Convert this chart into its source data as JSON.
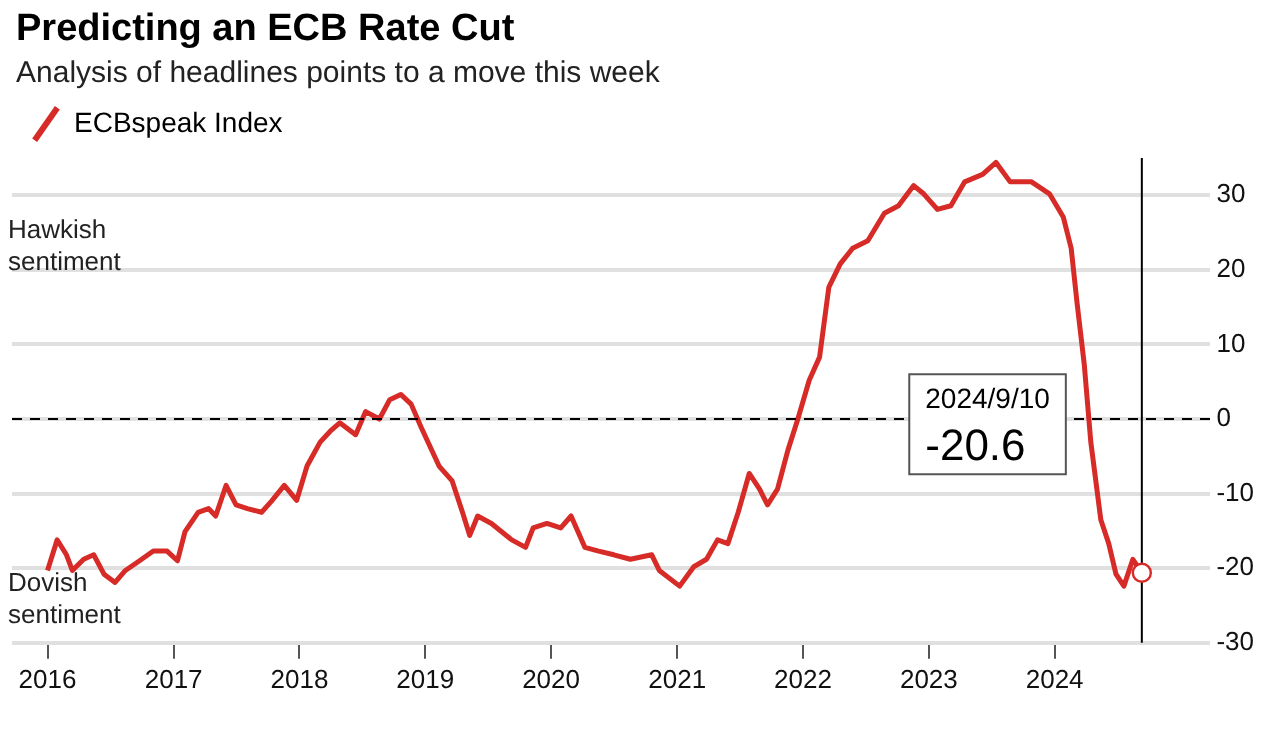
{
  "chart_data": {
    "type": "line",
    "title": "Predicting an ECB Rate Cut",
    "subtitle": "Analysis of headlines points to a move this week",
    "x": [
      "2016-01-01",
      "2016-01-29",
      "2016-02-25",
      "2016-03-13",
      "2016-04-15",
      "2016-05-14",
      "2016-06-13",
      "2016-07-15",
      "2016-08-14",
      "2016-09-24",
      "2016-11-03",
      "2016-12-13",
      "2017-01-12",
      "2017-02-03",
      "2017-03-13",
      "2017-04-12",
      "2017-05-03",
      "2017-06-02",
      "2017-07-01",
      "2017-08-03",
      "2017-09-13",
      "2017-10-12",
      "2017-11-18",
      "2017-12-24",
      "2018-01-23",
      "2018-03-02",
      "2018-04-01",
      "2018-04-28",
      "2018-06-13",
      "2018-07-12",
      "2018-08-21",
      "2018-09-20",
      "2018-10-22",
      "2018-11-21",
      "2018-12-20",
      "2019-02-10",
      "2019-03-20",
      "2019-04-19",
      "2019-05-10",
      "2019-06-02",
      "2019-07-12",
      "2019-09-09",
      "2019-10-19",
      "2019-11-10",
      "2019-12-20",
      "2020-01-29",
      "2020-02-28",
      "2020-04-08",
      "2020-05-18",
      "2020-07-01",
      "2020-08-18",
      "2020-10-19",
      "2020-11-10",
      "2021-01-08",
      "2021-02-18",
      "2021-03-27",
      "2021-04-28",
      "2021-05-28",
      "2021-06-27",
      "2021-07-29",
      "2021-08-28",
      "2021-09-20",
      "2021-10-19",
      "2021-11-18",
      "2021-12-17",
      "2022-01-19",
      "2022-02-18",
      "2022-03-17",
      "2022-04-19",
      "2022-05-25",
      "2022-07-08",
      "2022-08-25",
      "2022-10-05",
      "2022-11-18",
      "2022-12-17",
      "2023-01-26",
      "2023-03-06",
      "2023-04-15",
      "2023-06-06",
      "2023-07-15",
      "2023-08-25",
      "2023-10-26",
      "2023-12-17",
      "2024-01-26",
      "2024-02-18",
      "2024-03-06",
      "2024-03-27",
      "2024-04-15",
      "2024-05-14",
      "2024-06-06",
      "2024-06-27",
      "2024-07-20",
      "2024-08-15",
      "2024-09-10"
    ],
    "series": [
      {
        "name": "ECBspeak Index",
        "color": "#d62b27",
        "values": [
          -20.3,
          -16.2,
          -18.2,
          -20.3,
          -18.8,
          -18.2,
          -20.8,
          -21.9,
          -20.3,
          -19,
          -17.7,
          -17.7,
          -19,
          -15.1,
          -12.5,
          -12,
          -13,
          -8.9,
          -11.5,
          -12,
          -12.5,
          -11,
          -8.9,
          -10.9,
          -6.3,
          -3.1,
          -1.6,
          -0.5,
          -2.1,
          1,
          0,
          2.6,
          3.3,
          2,
          -1.1,
          -6.3,
          -8.3,
          -12.5,
          -15.6,
          -13,
          -14,
          -16.2,
          -17.2,
          -14.6,
          -14,
          -14.6,
          -13,
          -17.2,
          -17.7,
          -18.2,
          -18.8,
          -18.2,
          -20.3,
          -22.4,
          -19.8,
          -18.8,
          -16.2,
          -16.7,
          -12.5,
          -7.3,
          -9.4,
          -11.5,
          -9.4,
          -4.2,
          0,
          5.2,
          8.3,
          17.7,
          20.8,
          22.9,
          23.9,
          27.6,
          28.6,
          31.3,
          30.2,
          28.1,
          28.6,
          31.8,
          32.8,
          34.4,
          31.8,
          31.8,
          30.2,
          27.1,
          22.9,
          15.6,
          7.3,
          -3.1,
          -13.5,
          -16.7,
          -20.8,
          -22.4,
          -18.8,
          -20.6
        ]
      }
    ],
    "xlim": [
      "2015-09-20",
      "2025-03-28"
    ],
    "xticks": [
      "2016",
      "2017",
      "2018",
      "2019",
      "2020",
      "2021",
      "2022",
      "2023",
      "2024"
    ],
    "ylim": [
      -30,
      35
    ],
    "yticks": [
      -30,
      -20,
      -10,
      0,
      10,
      20,
      30
    ],
    "grid": "y",
    "legend": "top left",
    "marker": "none",
    "line_style": "solid",
    "ref_lines": [
      {
        "axis": "y",
        "value": 0,
        "color": "#000000",
        "line_style": "dashed"
      },
      {
        "axis": "x",
        "value": "2024-09-10",
        "color": "#000000",
        "line_style": "solid"
      }
    ],
    "annotations": [
      "Hawkish sentiment",
      "Dovish sentiment",
      "2024/9/10",
      "-20.6"
    ]
  }
}
